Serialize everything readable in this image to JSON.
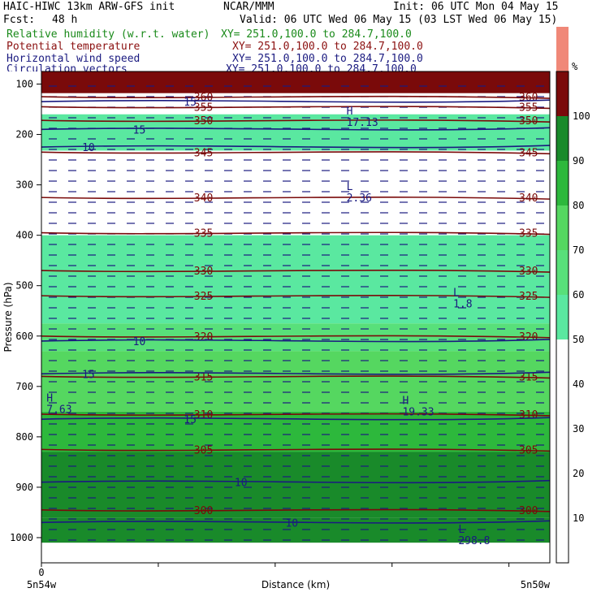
{
  "header": {
    "model": "HAIC-HIWC 13km ARW-GFS init",
    "org": "NCAR/MMM",
    "init": "Init: 06 UTC Mon 04 May 15",
    "fcst_label": "Fcst:",
    "fcst_value": "48 h",
    "valid": "Valid: 06 UTC Wed 06 May 15 (03 LST Wed 06 May 15)"
  },
  "legend_lines": [
    {
      "name": "Relative humidity (w.r.t. water)",
      "xy": "XY= 251.0,100.0 to 284.7,100.0",
      "color": "#1a8a1a"
    },
    {
      "name": "Potential temperature",
      "xy": "XY= 251.0,100.0 to 284.7,100.0",
      "color": "#8b1010"
    },
    {
      "name": "Horizontal wind speed",
      "xy": "XY= 251.0,100.0 to 284.7,100.0",
      "color": "#1a1a80"
    },
    {
      "name": "Circulation vectors",
      "xy": "XY= 251.0,100.0 to 284.7,100.0",
      "color": "#1a1a80"
    }
  ],
  "chart_data": {
    "type": "cross-section",
    "ylabel": "Pressure (hPa)",
    "xlabel": "Distance (km)",
    "y_ticks": [
      100,
      200,
      300,
      400,
      500,
      600,
      700,
      800,
      900,
      1000
    ],
    "ylim": [
      1050,
      75
    ],
    "x_tick_zero": "0",
    "x_start_label": "5n54w",
    "x_end_label": "5n50w",
    "colorbar": {
      "unit": "%",
      "tick_labels": [
        10,
        20,
        30,
        40,
        50,
        60,
        70,
        80,
        90,
        100
      ],
      "bands": [
        {
          "range": [
            0,
            50
          ],
          "color": "#ffffff"
        },
        {
          "range": [
            50,
            60
          ],
          "color": "#5ae8a0"
        },
        {
          "range": [
            60,
            70
          ],
          "color": "#58e07a"
        },
        {
          "range": [
            70,
            80
          ],
          "color": "#55d760"
        },
        {
          "range": [
            80,
            90
          ],
          "color": "#2db83c"
        },
        {
          "range": [
            90,
            100
          ],
          "color": "#198a2a"
        },
        {
          "range": [
            100,
            110
          ],
          "color": "#7a0a0a"
        },
        {
          "range": [
            110,
            120
          ],
          "color": "#f08878"
        }
      ]
    },
    "rh_bands": [
      {
        "p_top": 75,
        "p_bot": 118,
        "color": "#7a0a0a"
      },
      {
        "p_top": 160,
        "p_bot": 232,
        "color": "#5ae8a0"
      },
      {
        "p_top": 400,
        "p_bot": 575,
        "color": "#5ae8a0"
      },
      {
        "p_top": 575,
        "p_bot": 630,
        "color": "#58e07a"
      },
      {
        "p_top": 630,
        "p_bot": 750,
        "color": "#55d760"
      },
      {
        "p_top": 750,
        "p_bot": 830,
        "color": "#2db83c"
      },
      {
        "p_top": 830,
        "p_bot": 960,
        "color": "#198a2a"
      },
      {
        "p_top": 960,
        "p_bot": 1010,
        "color": "#198a2a"
      }
    ],
    "theta_contours": [
      {
        "label": "300",
        "p": 945
      },
      {
        "label": "305",
        "p": 825
      },
      {
        "label": "310",
        "p": 755
      },
      {
        "label": "315",
        "p": 680
      },
      {
        "label": "320",
        "p": 600
      },
      {
        "label": "325",
        "p": 520
      },
      {
        "label": "330",
        "p": 470
      },
      {
        "label": "335",
        "p": 395
      },
      {
        "label": "340",
        "p": 325
      },
      {
        "label": "345",
        "p": 235
      },
      {
        "label": "350",
        "p": 172
      },
      {
        "label": "355",
        "p": 145
      },
      {
        "label": "360",
        "p": 125
      }
    ],
    "wind_contours": [
      {
        "label": "15",
        "p": 675
      },
      {
        "label": "10",
        "p": 610
      },
      {
        "label": "15",
        "p": 765
      },
      {
        "label": "10",
        "p": 890
      },
      {
        "label": "10",
        "p": 970
      },
      {
        "label": "10",
        "p": 225
      },
      {
        "label": "15",
        "p": 190
      },
      {
        "label": "15",
        "p": 135
      }
    ],
    "extrema": [
      {
        "kind": "H",
        "value": "17.13",
        "x_frac": 0.6,
        "p": 170
      },
      {
        "kind": "L",
        "value": "2.36",
        "x_frac": 0.6,
        "p": 320
      },
      {
        "kind": "L",
        "value": "1.8",
        "x_frac": 0.81,
        "p": 530
      },
      {
        "kind": "H",
        "value": "7.63",
        "x_frac": 0.01,
        "p": 740
      },
      {
        "kind": "H",
        "value": "19.33",
        "x_frac": 0.71,
        "p": 745
      },
      {
        "kind": "L",
        "value": "298.8",
        "x_frac": 0.82,
        "p": 1000
      }
    ]
  }
}
